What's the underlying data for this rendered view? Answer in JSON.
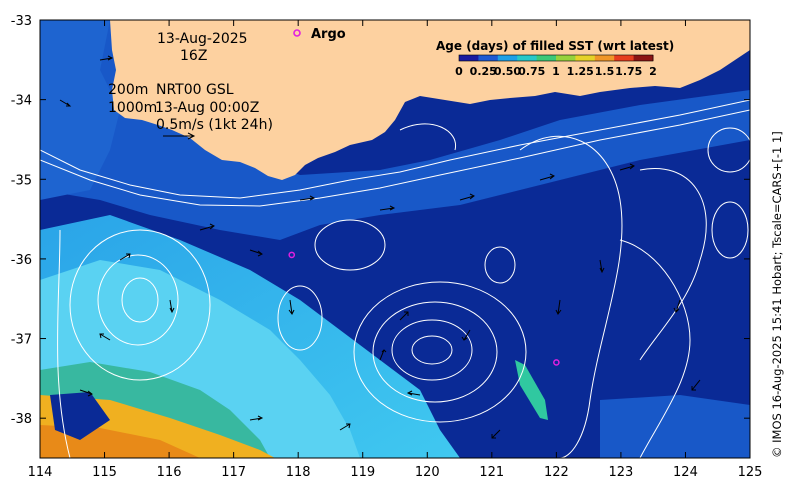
{
  "map": {
    "date_label": "13-Aug-2025",
    "time_label": "16Z",
    "argo_label": "Argo",
    "depth_label_1": "200m",
    "depth_label_2": "1000m",
    "product_label": "NRT00 GSL",
    "product_time": "13-Aug 00:00Z",
    "scale_label": "0.5m/s (1kt 24h)",
    "credit": "© IMOS 16-Aug-2025 15:41 Hobart; Tscale=CARS+[-1 1]",
    "extent": {
      "lon_min": 114,
      "lon_max": 125,
      "lat_min": -38.5,
      "lat_max": -33
    },
    "x_ticks": [
      "114",
      "115",
      "116",
      "117",
      "118",
      "119",
      "120",
      "121",
      "122",
      "123",
      "124",
      "125"
    ],
    "y_ticks": [
      "-33",
      "-34",
      "-35",
      "-36",
      "-37",
      "-38"
    ],
    "argo_floats": [
      {
        "lon": 117.9,
        "lat": -35.95
      },
      {
        "lon": 122.0,
        "lat": -37.3
      }
    ],
    "colors": {
      "land": "#fdd1a0",
      "deep": "#0a2a96",
      "mid": "#1858c8",
      "shelf": "#2aa4e8",
      "cyan": "#40c8f0",
      "warm": "#f0b020",
      "contour": "#ffffff",
      "argo": "#e020e0"
    }
  },
  "legend": {
    "title": "Age (days) of filled SST (wrt latest)",
    "ticks": [
      "0",
      "0.25",
      "0.50",
      "0.75",
      "1",
      "1.25",
      "1.5",
      "1.75",
      "2"
    ],
    "colors": [
      "#1a1aa0",
      "#1e5ad2",
      "#1ea0e6",
      "#28c8c8",
      "#3cc878",
      "#96d23c",
      "#e6d228",
      "#f09628",
      "#e63c1e",
      "#8c1414"
    ]
  }
}
